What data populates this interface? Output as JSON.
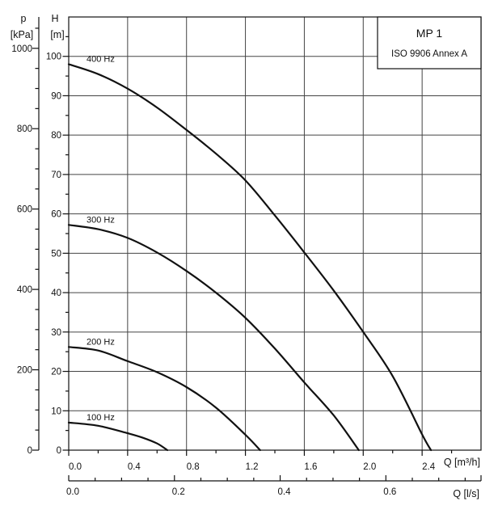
{
  "page": {
    "background": "#ffffff"
  },
  "info_box": {
    "title": "MP 1",
    "subtitle": "ISO 9906 Annex A"
  },
  "chart_data": {
    "type": "line",
    "title": "MP 1",
    "subtitle": "ISO 9906 Annex A",
    "grid": true,
    "legend_position": "inline-curve-labels",
    "colors": {
      "ink": "#111111",
      "grid": "#444444",
      "background": "#ffffff"
    },
    "x_axis_primary": {
      "label": "Q [m³/h]",
      "min": 0,
      "max": 2.8,
      "major_step": 0.4,
      "minor_step": 0.2,
      "tick_labels": [
        "0.0",
        "0.4",
        "0.8",
        "1.2",
        "1.6",
        "2.0",
        "2.4"
      ]
    },
    "x_axis_secondary": {
      "label": "Q [l/s]",
      "min": 0,
      "max": 0.78,
      "major_step": 0.2,
      "minor_step": 0.05,
      "tick_labels": [
        "0.0",
        "0.2",
        "0.4",
        "0.6"
      ]
    },
    "y_axis_primary": {
      "name": "H",
      "unit": "[m]",
      "min": 0,
      "max": 110,
      "major_step": 10,
      "minor_step": 5,
      "max_labeled": 100,
      "tick_labels": [
        "0",
        "10",
        "20",
        "30",
        "40",
        "50",
        "60",
        "70",
        "80",
        "90",
        "100"
      ]
    },
    "y_axis_secondary": {
      "name": "p",
      "unit": "[kPa]",
      "min": 0,
      "max": 1078,
      "major_step": 200,
      "minor_step": 50,
      "max_labeled": 1000,
      "tick_labels": [
        "0",
        "200",
        "400",
        "600",
        "800",
        "1000"
      ]
    },
    "series": [
      {
        "name": "100 Hz",
        "points": [
          [
            0,
            7.0
          ],
          [
            0.2,
            6.2
          ],
          [
            0.4,
            4.3
          ],
          [
            0.5,
            3.2
          ],
          [
            0.6,
            1.7
          ],
          [
            0.67,
            0
          ]
        ]
      },
      {
        "name": "200 Hz",
        "points": [
          [
            0,
            26.2
          ],
          [
            0.2,
            25.3
          ],
          [
            0.4,
            22.6
          ],
          [
            0.6,
            19.8
          ],
          [
            0.8,
            16.0
          ],
          [
            1.0,
            10.8
          ],
          [
            1.2,
            3.9
          ],
          [
            1.3,
            0
          ]
        ]
      },
      {
        "name": "300 Hz",
        "points": [
          [
            0,
            57.2
          ],
          [
            0.2,
            56.1
          ],
          [
            0.4,
            53.9
          ],
          [
            0.6,
            50.2
          ],
          [
            0.8,
            45.5
          ],
          [
            1.0,
            40.0
          ],
          [
            1.2,
            33.6
          ],
          [
            1.4,
            25.8
          ],
          [
            1.6,
            17.2
          ],
          [
            1.8,
            8.8
          ],
          [
            1.97,
            0
          ]
        ]
      },
      {
        "name": "400 Hz",
        "points": [
          [
            0,
            98.0
          ],
          [
            0.2,
            95.5
          ],
          [
            0.4,
            91.8
          ],
          [
            0.6,
            87.0
          ],
          [
            0.8,
            81.3
          ],
          [
            1.0,
            75.3
          ],
          [
            1.2,
            68.5
          ],
          [
            1.4,
            59.6
          ],
          [
            1.6,
            50.2
          ],
          [
            1.8,
            40.5
          ],
          [
            2.0,
            30.0
          ],
          [
            2.2,
            18.8
          ],
          [
            2.4,
            4.0
          ],
          [
            2.46,
            0
          ]
        ]
      }
    ]
  }
}
